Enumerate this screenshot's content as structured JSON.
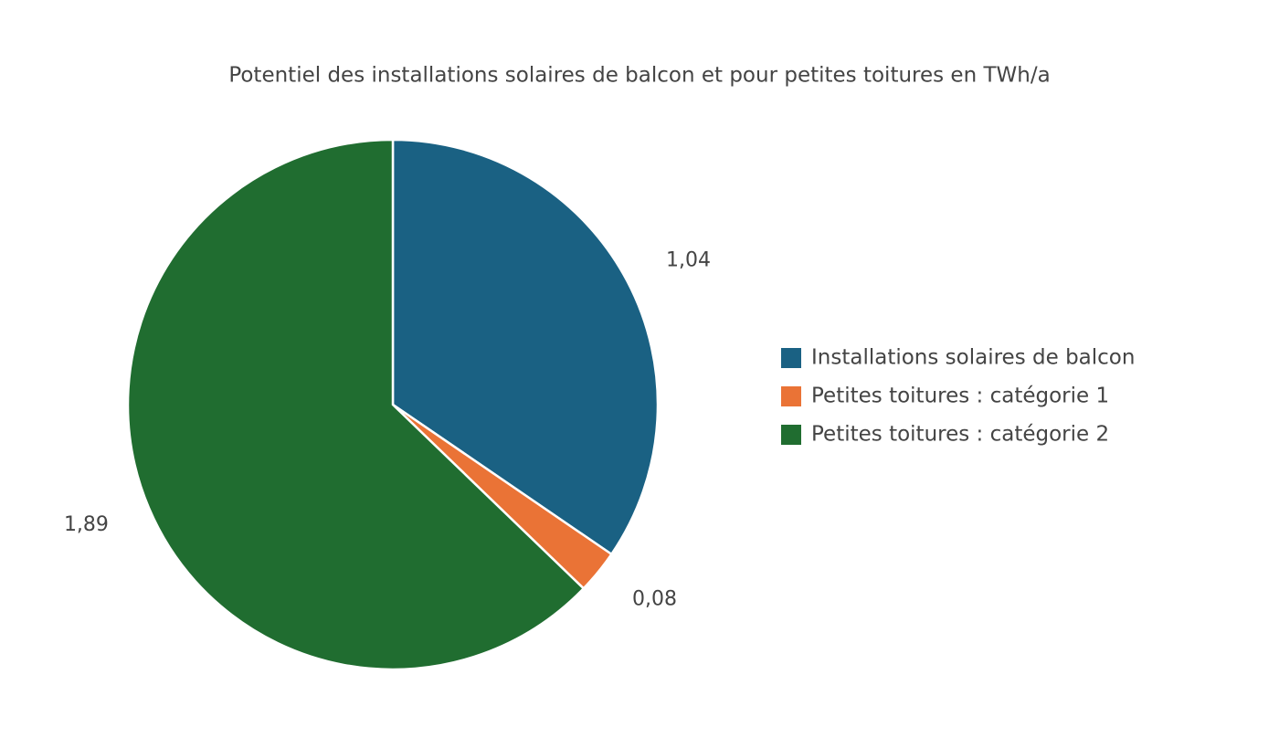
{
  "chart_data": {
    "type": "pie",
    "title": "Potentiel des installations solaires de balcon et pour petites toitures en TWh/a",
    "categories": [
      "Installations solaires de balcon",
      "Petites toitures : catégorie 1",
      "Petites toitures : catégorie 2"
    ],
    "values": [
      1.04,
      0.08,
      1.89
    ],
    "value_labels": [
      "1,04",
      "0,08",
      "1,89"
    ],
    "colors": [
      "#1a6183",
      "#ea7336",
      "#206d30"
    ],
    "legend": "right"
  }
}
